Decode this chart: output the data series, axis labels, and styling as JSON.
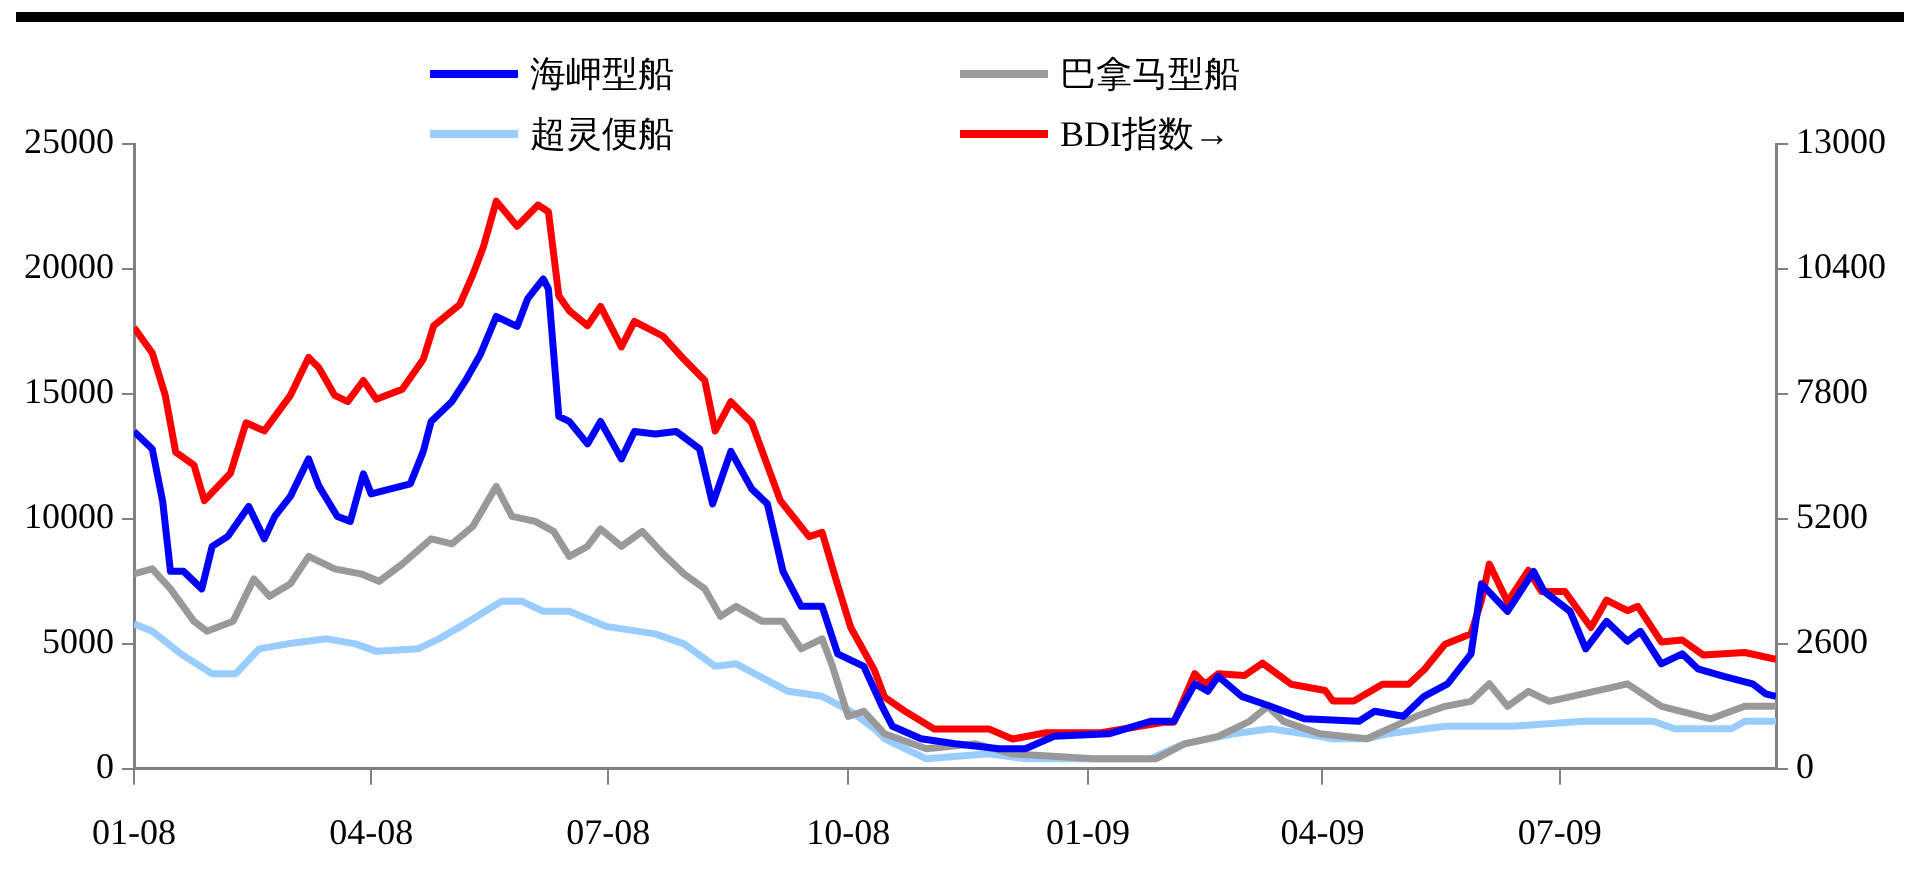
{
  "chart_data": {
    "type": "line",
    "legend": "top",
    "marker": "none",
    "line_style": "solid",
    "grid": false,
    "xlim": [
      "2008-01-01",
      "2009-09-22"
    ],
    "xticks": [
      {
        "value": "2008-01-01",
        "label": "01-08"
      },
      {
        "value": "2008-04-01",
        "label": "04-08"
      },
      {
        "value": "2008-07-01",
        "label": "07-08"
      },
      {
        "value": "2008-10-01",
        "label": "10-08"
      },
      {
        "value": "2009-01-01",
        "label": "01-09"
      },
      {
        "value": "2009-04-01",
        "label": "04-09"
      },
      {
        "value": "2009-07-01",
        "label": "07-09"
      }
    ],
    "ylim": [
      0,
      25000
    ],
    "yticks": [
      0,
      5000,
      10000,
      15000,
      20000,
      25000
    ],
    "y2lim": [
      0,
      13000
    ],
    "y2ticks": [
      0,
      2600,
      5200,
      7800,
      10400,
      13000
    ],
    "series": [
      {
        "name": "海岬型船",
        "color": "#0000ff",
        "x": [
          "2008-01-01",
          "2008-01-08",
          "2008-01-12",
          "2008-01-15",
          "2008-01-20",
          "2008-01-27",
          "2008-01-31",
          "2008-02-06",
          "2008-02-14",
          "2008-02-20",
          "2008-02-24",
          "2008-03-01",
          "2008-03-08",
          "2008-03-12",
          "2008-03-19",
          "2008-03-24",
          "2008-03-29",
          "2008-04-01",
          "2008-04-16",
          "2008-04-21",
          "2008-04-24",
          "2008-05-02",
          "2008-05-07",
          "2008-05-13",
          "2008-05-19",
          "2008-05-27",
          "2008-05-31",
          "2008-06-06",
          "2008-06-08",
          "2008-06-12",
          "2008-06-16",
          "2008-06-23",
          "2008-06-28",
          "2008-07-06",
          "2008-07-11",
          "2008-07-19",
          "2008-07-27",
          "2008-08-05",
          "2008-08-10",
          "2008-08-17",
          "2008-08-25",
          "2008-08-31",
          "2008-09-06",
          "2008-09-13",
          "2008-09-21",
          "2008-09-27",
          "2008-10-07",
          "2008-10-14",
          "2008-10-18",
          "2008-10-29",
          "2008-11-11",
          "2008-11-28",
          "2008-12-08",
          "2008-12-19",
          "2009-01-09",
          "2009-01-25",
          "2009-02-03",
          "2009-02-11",
          "2009-02-16",
          "2009-02-20",
          "2009-03-01",
          "2009-03-12",
          "2009-03-25",
          "2009-04-15",
          "2009-04-21",
          "2009-05-02",
          "2009-05-10",
          "2009-05-19",
          "2009-05-28",
          "2009-06-01",
          "2009-06-11",
          "2009-06-21",
          "2009-06-25",
          "2009-07-05",
          "2009-07-11",
          "2009-07-19",
          "2009-07-27",
          "2009-08-01",
          "2009-08-09",
          "2009-08-17",
          "2009-08-23",
          "2009-09-02",
          "2009-09-13",
          "2009-09-18",
          "2009-09-22"
        ],
        "values": [
          13500,
          12800,
          10700,
          7900,
          7900,
          7200,
          8900,
          9300,
          10500,
          9200,
          10100,
          10900,
          12400,
          11300,
          10100,
          9900,
          11800,
          11000,
          11400,
          12700,
          13900,
          14700,
          15500,
          16600,
          18100,
          17700,
          18800,
          19600,
          19200,
          14100,
          13900,
          13000,
          13900,
          12400,
          13500,
          13400,
          13500,
          12800,
          10600,
          12700,
          11200,
          10600,
          7900,
          6500,
          6500,
          4600,
          4100,
          2500,
          1700,
          1200,
          1000,
          800,
          800,
          1300,
          1400,
          1900,
          1900,
          3400,
          3100,
          3700,
          2900,
          2500,
          2000,
          1900,
          2300,
          2100,
          2900,
          3400,
          4600,
          7400,
          6300,
          7900,
          7100,
          6300,
          4800,
          5900,
          5100,
          5500,
          4200,
          4600,
          4000,
          3700,
          3400,
          3000,
          2900
        ]
      },
      {
        "name": "巴拿马型船",
        "color": "#999999",
        "x": [
          "2008-01-01",
          "2008-01-08",
          "2008-01-15",
          "2008-01-24",
          "2008-01-29",
          "2008-02-08",
          "2008-02-16",
          "2008-02-22",
          "2008-03-01",
          "2008-03-08",
          "2008-03-18",
          "2008-03-28",
          "2008-04-04",
          "2008-04-13",
          "2008-04-24",
          "2008-05-02",
          "2008-05-10",
          "2008-05-19",
          "2008-05-25",
          "2008-06-03",
          "2008-06-10",
          "2008-06-16",
          "2008-06-23",
          "2008-06-28",
          "2008-07-06",
          "2008-07-14",
          "2008-07-22",
          "2008-07-30",
          "2008-08-07",
          "2008-08-13",
          "2008-08-19",
          "2008-08-29",
          "2008-09-06",
          "2008-09-13",
          "2008-09-21",
          "2008-09-25",
          "2008-10-01",
          "2008-10-07",
          "2008-10-15",
          "2008-10-31",
          "2008-11-19",
          "2008-12-03",
          "2009-01-03",
          "2009-01-27",
          "2009-02-07",
          "2009-02-20",
          "2009-03-04",
          "2009-03-11",
          "2009-03-17",
          "2009-03-31",
          "2009-04-18",
          "2009-05-07",
          "2009-05-18",
          "2009-05-28",
          "2009-06-04",
          "2009-06-11",
          "2009-06-19",
          "2009-06-27",
          "2009-07-10",
          "2009-07-27",
          "2009-08-09",
          "2009-08-28",
          "2009-09-10",
          "2009-09-22"
        ],
        "values": [
          7800,
          8000,
          7200,
          5900,
          5500,
          5900,
          7600,
          6900,
          7400,
          8500,
          8000,
          7800,
          7500,
          8200,
          9200,
          9000,
          9700,
          11300,
          10100,
          9900,
          9500,
          8500,
          8900,
          9600,
          8900,
          9500,
          8600,
          7800,
          7200,
          6100,
          6500,
          5900,
          5900,
          4800,
          5200,
          4100,
          2100,
          2300,
          1400,
          800,
          1000,
          600,
          400,
          400,
          1000,
          1300,
          1900,
          2500,
          1900,
          1400,
          1200,
          2100,
          2500,
          2700,
          3400,
          2500,
          3100,
          2700,
          3000,
          3400,
          2500,
          2000,
          2500,
          2500
        ]
      },
      {
        "name": "超灵便船",
        "color": "#99ccff",
        "x": [
          "2008-01-01",
          "2008-01-08",
          "2008-01-19",
          "2008-01-31",
          "2008-02-09",
          "2008-02-18",
          "2008-02-29",
          "2008-03-15",
          "2008-03-26",
          "2008-04-03",
          "2008-04-19",
          "2008-04-27",
          "2008-05-07",
          "2008-05-21",
          "2008-05-29",
          "2008-06-06",
          "2008-06-16",
          "2008-06-30",
          "2008-07-19",
          "2008-07-30",
          "2008-08-11",
          "2008-08-19",
          "2008-09-08",
          "2008-09-21",
          "2008-10-02",
          "2008-10-11",
          "2008-10-15",
          "2008-10-31",
          "2008-11-24",
          "2008-12-08",
          "2009-01-25",
          "2009-02-07",
          "2009-02-26",
          "2009-03-12",
          "2009-03-25",
          "2009-04-05",
          "2009-04-18",
          "2009-04-26",
          "2009-05-18",
          "2009-06-13",
          "2009-07-10",
          "2009-08-06",
          "2009-08-14",
          "2009-09-05",
          "2009-09-10",
          "2009-09-22"
        ],
        "values": [
          5800,
          5500,
          4600,
          3800,
          3800,
          4800,
          5000,
          5200,
          5000,
          4700,
          4800,
          5200,
          5800,
          6700,
          6700,
          6300,
          6300,
          5700,
          5400,
          5000,
          4100,
          4200,
          3100,
          2900,
          2300,
          1600,
          1200,
          400,
          600,
          400,
          400,
          1000,
          1400,
          1600,
          1400,
          1200,
          1200,
          1400,
          1700,
          1700,
          1900,
          1900,
          1600,
          1600,
          1900,
          1900
        ]
      },
      {
        "name": "BDI指数→",
        "color": "#ff0000",
        "axis": "y2",
        "x": [
          "2008-01-01",
          "2008-01-08",
          "2008-01-13",
          "2008-01-17",
          "2008-01-24",
          "2008-01-28",
          "2008-02-07",
          "2008-02-13",
          "2008-02-20",
          "2008-03-01",
          "2008-03-08",
          "2008-03-12",
          "2008-03-18",
          "2008-03-23",
          "2008-03-29",
          "2008-04-03",
          "2008-04-13",
          "2008-04-21",
          "2008-04-25",
          "2008-05-05",
          "2008-05-10",
          "2008-05-14",
          "2008-05-19",
          "2008-05-27",
          "2008-06-04",
          "2008-06-08",
          "2008-06-12",
          "2008-06-16",
          "2008-06-23",
          "2008-06-28",
          "2008-07-06",
          "2008-07-11",
          "2008-07-22",
          "2008-07-30",
          "2008-08-07",
          "2008-08-11",
          "2008-08-17",
          "2008-08-25",
          "2008-09-05",
          "2008-09-16",
          "2008-09-21",
          "2008-09-27",
          "2008-10-02",
          "2008-10-11",
          "2008-10-15",
          "2008-10-23",
          "2008-11-03",
          "2008-11-24",
          "2008-12-03",
          "2008-12-16",
          "2009-01-06",
          "2009-01-30",
          "2009-02-03",
          "2009-02-11",
          "2009-02-15",
          "2009-02-20",
          "2009-03-02",
          "2009-03-09",
          "2009-03-20",
          "2009-04-02",
          "2009-04-05",
          "2009-04-13",
          "2009-04-24",
          "2009-05-04",
          "2009-05-10",
          "2009-05-18",
          "2009-05-28",
          "2009-06-01",
          "2009-06-04",
          "2009-06-11",
          "2009-06-19",
          "2009-06-24",
          "2009-07-03",
          "2009-07-13",
          "2009-07-19",
          "2009-07-27",
          "2009-07-31",
          "2009-08-09",
          "2009-08-17",
          "2009-08-25",
          "2009-09-10",
          "2009-09-22"
        ],
        "values": [
          9180,
          8650,
          7770,
          6590,
          6320,
          5580,
          6150,
          7200,
          7030,
          7770,
          8560,
          8340,
          7770,
          7640,
          8080,
          7690,
          7900,
          8520,
          9220,
          9660,
          10280,
          10850,
          11810,
          11290,
          11730,
          11590,
          9840,
          9530,
          9220,
          9620,
          8780,
          9310,
          9000,
          8520,
          8080,
          7030,
          7640,
          7200,
          5580,
          4830,
          4920,
          3820,
          2940,
          2060,
          1490,
          1190,
          830,
          830,
          620,
          750,
          750,
          970,
          970,
          1980,
          1760,
          1980,
          1940,
          2200,
          1760,
          1630,
          1410,
          1410,
          1760,
          1760,
          2060,
          2590,
          2810,
          3510,
          4260,
          3470,
          4130,
          3690,
          3690,
          2940,
          3510,
          3290,
          3380,
          2640,
          2680,
          2370,
          2420,
          2280
        ]
      }
    ]
  }
}
